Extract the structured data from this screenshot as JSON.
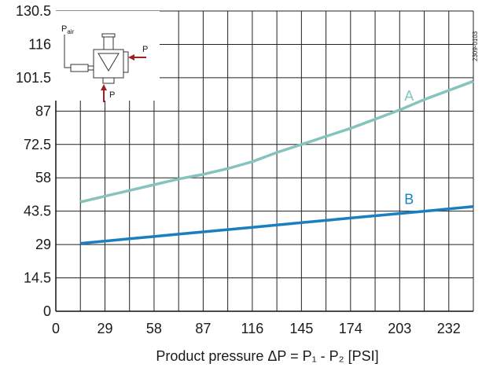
{
  "chart_data": {
    "type": "line",
    "title": "",
    "xlabel": "Product pressure  ΔP = P₁ - P₂ [PSI]",
    "ylabel": "",
    "xlim": [
      0,
      246.5
    ],
    "ylim": [
      0,
      130.5
    ],
    "x_ticks": [
      "0",
      "29",
      "58",
      "87",
      "116",
      "145",
      "174",
      "203",
      "232"
    ],
    "y_ticks": [
      "0",
      "14.5",
      "29",
      "43.5",
      "58",
      "72.5",
      "87",
      "101.5",
      "116",
      "130.5"
    ],
    "grid": true,
    "series": [
      {
        "name": "A",
        "color": "#86c3be",
        "x": [
          14.5,
          29,
          43.5,
          58,
          72.5,
          87,
          101.5,
          116,
          130.5,
          145,
          159.5,
          174,
          188.5,
          203,
          217.5,
          232,
          246.5
        ],
        "y": [
          47.5,
          50,
          52.5,
          55,
          57.5,
          59.5,
          62,
          65,
          69,
          72.5,
          76,
          79.5,
          83.5,
          87.5,
          92,
          96,
          100
        ]
      },
      {
        "name": "B",
        "color": "#1a7fc1",
        "x": [
          14.5,
          29,
          43.5,
          58,
          72.5,
          87,
          101.5,
          116,
          130.5,
          145,
          159.5,
          174,
          188.5,
          203,
          217.5,
          232,
          246.5
        ],
        "y": [
          29.5,
          30.5,
          31.5,
          32.5,
          33.5,
          34.5,
          35.5,
          36.5,
          37.5,
          38.5,
          39.5,
          40.5,
          41.5,
          42.5,
          43.5,
          44.5,
          45.5
        ]
      }
    ]
  },
  "figure_code": "2309-0103",
  "inset": {
    "pair_label": "P",
    "pair_sub": "air",
    "p_right_label": "P",
    "p_bottom_label": "P",
    "arrow_color": "#a01f24"
  }
}
